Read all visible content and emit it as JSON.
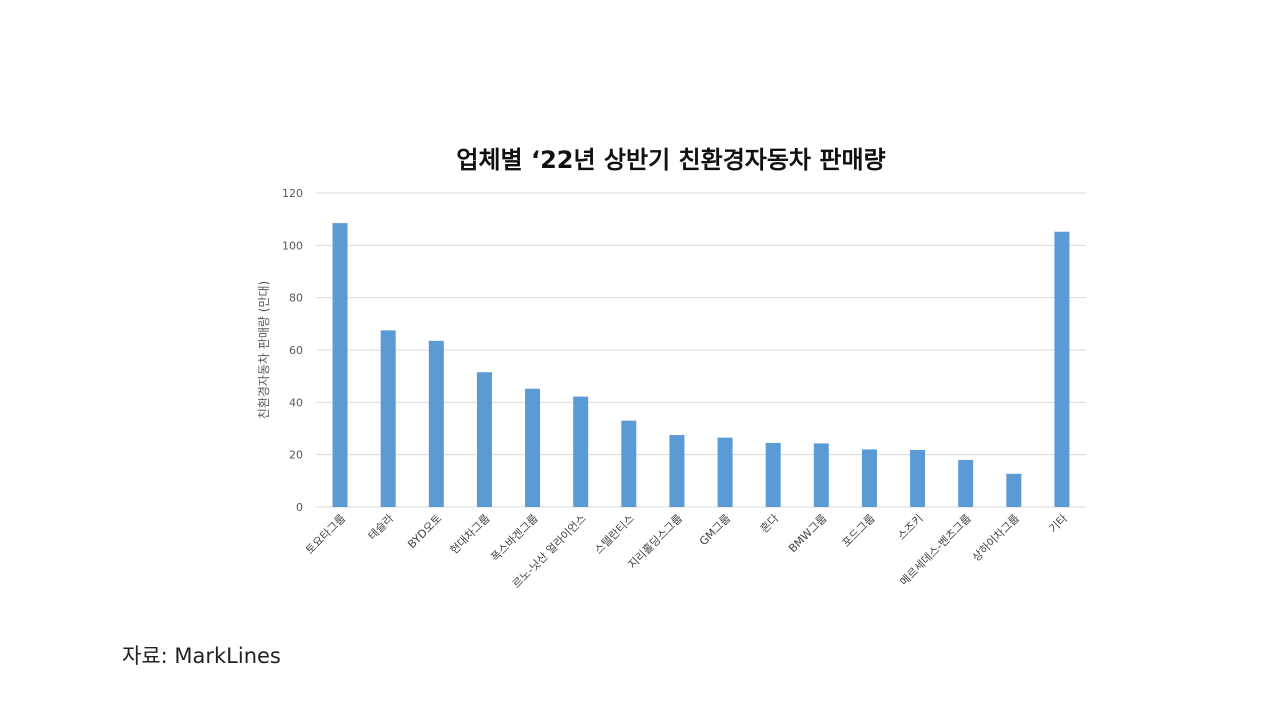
{
  "chart_data": {
    "type": "bar",
    "title": "업체별 ‘22년 상반기 친환경자동차 판매량",
    "xlabel": "",
    "ylabel": "친환경자동차 판매량 (만대)",
    "ylim": [
      0,
      120
    ],
    "yticks": [
      0,
      20,
      40,
      60,
      80,
      100,
      120
    ],
    "grid": true,
    "legend": "none",
    "bar_color": "#5b9bd5",
    "categories": [
      "토요타그룹",
      "테슬라",
      "BYD오토",
      "현대차그룹",
      "폭스바겐그룹",
      "르노-닛산 얼라이언스",
      "스텔란티스",
      "지리홀딩스그룹",
      "GM그룹",
      "혼다",
      "BMW그룹",
      "포드그룹",
      "스즈키",
      "메르세데스-벤츠그룹",
      "상하이차그룹",
      "기타"
    ],
    "values": [
      108.5,
      67.5,
      63.5,
      51.5,
      45.2,
      42.2,
      33,
      27.5,
      26.5,
      24.5,
      24.3,
      22,
      21.8,
      18,
      12.7,
      105.2
    ]
  },
  "source_note": "자료: MarkLines"
}
